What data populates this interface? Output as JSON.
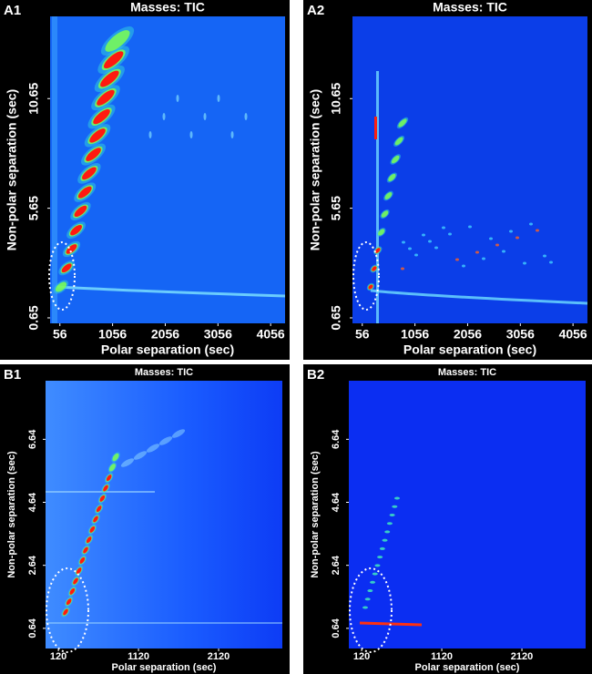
{
  "chart_data": [
    {
      "type": "heatmap",
      "panel": "A1",
      "title": "Masses: TIC",
      "xlabel": "Polar separation (sec)",
      "ylabel": "Non-polar separation (sec)",
      "xlim": [
        -130,
        4330
      ],
      "xticks": [
        56,
        1056,
        2056,
        3056,
        4056
      ],
      "ylim": [
        0.4,
        14.4
      ],
      "yticks": [
        0.65,
        5.65,
        10.65
      ]
    },
    {
      "type": "heatmap",
      "panel": "A2",
      "title": "Masses: TIC",
      "xlabel": "Polar separation (sec)",
      "ylabel": "Non-polar separation (sec)",
      "xlim": [
        -130,
        4330
      ],
      "xticks": [
        56,
        1056,
        2056,
        3056,
        4056
      ],
      "ylim": [
        0.4,
        14.4
      ],
      "yticks": [
        0.65,
        5.65,
        10.65
      ]
    },
    {
      "type": "heatmap",
      "panel": "B1",
      "title": "Masses: TIC",
      "xlabel": "Polar separation (sec)",
      "ylabel": "Non-polar separation (sec)",
      "xlim": [
        -40,
        2915
      ],
      "xticks": [
        120,
        1120,
        2120
      ],
      "ylim": [
        0,
        8.5
      ],
      "yticks": [
        0.64,
        2.64,
        4.64,
        6.64
      ]
    },
    {
      "type": "heatmap",
      "panel": "B2",
      "title": "Masses: TIC",
      "xlabel": "Polar separation (sec)",
      "ylabel": "Non-polar separation (sec)",
      "xlim": [
        -40,
        2915
      ],
      "xticks": [
        120,
        1120,
        2120
      ],
      "ylim": [
        0,
        8.5
      ],
      "yticks": [
        0.64,
        2.64,
        4.64,
        6.64
      ]
    }
  ]
}
